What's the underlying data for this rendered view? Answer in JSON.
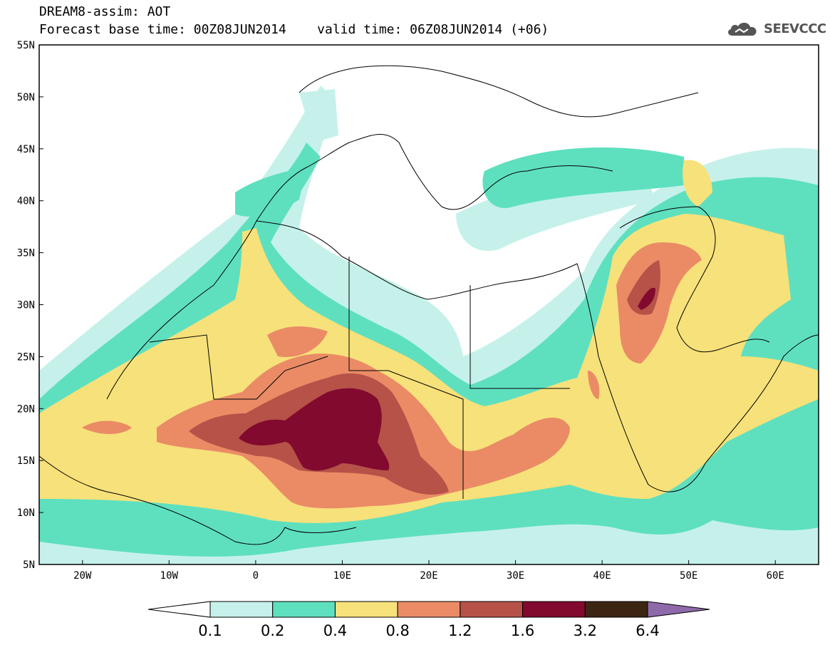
{
  "header": {
    "title": "DREAM8-assim: AOT",
    "base_time_label": "Forecast base time: 00Z08JUN2014",
    "valid_time_label": "valid time: 06Z08JUN2014 (+06)"
  },
  "brand": {
    "logo_icon": "cloud-icon",
    "name": "SEEVCCC"
  },
  "map": {
    "lon_range": [
      -25,
      65
    ],
    "lat_range": [
      5,
      55
    ],
    "lon_ticks": [
      {
        "value": -20,
        "label": "20W"
      },
      {
        "value": -10,
        "label": "10W"
      },
      {
        "value": 0,
        "label": "0"
      },
      {
        "value": 10,
        "label": "10E"
      },
      {
        "value": 20,
        "label": "20E"
      },
      {
        "value": 30,
        "label": "30E"
      },
      {
        "value": 40,
        "label": "40E"
      },
      {
        "value": 50,
        "label": "50E"
      },
      {
        "value": 60,
        "label": "60E"
      }
    ],
    "lat_ticks": [
      {
        "value": 5,
        "label": "5N"
      },
      {
        "value": 10,
        "label": "10N"
      },
      {
        "value": 15,
        "label": "15N"
      },
      {
        "value": 20,
        "label": "20N"
      },
      {
        "value": 25,
        "label": "25N"
      },
      {
        "value": 30,
        "label": "30N"
      },
      {
        "value": 35,
        "label": "35N"
      },
      {
        "value": 40,
        "label": "40N"
      },
      {
        "value": 45,
        "label": "45N"
      },
      {
        "value": 50,
        "label": "50N"
      },
      {
        "value": 55,
        "label": "55N"
      }
    ]
  },
  "colorbar": {
    "levels": [
      "0.1",
      "0.2",
      "0.4",
      "0.8",
      "1.2",
      "1.6",
      "3.2",
      "6.4"
    ],
    "colors": [
      "#ffffff",
      "#c6f1eb",
      "#5ee0bf",
      "#f7e17a",
      "#ea8b66",
      "#b65248",
      "#820a2e",
      "#3d2514",
      "#8e6aaa"
    ]
  }
}
